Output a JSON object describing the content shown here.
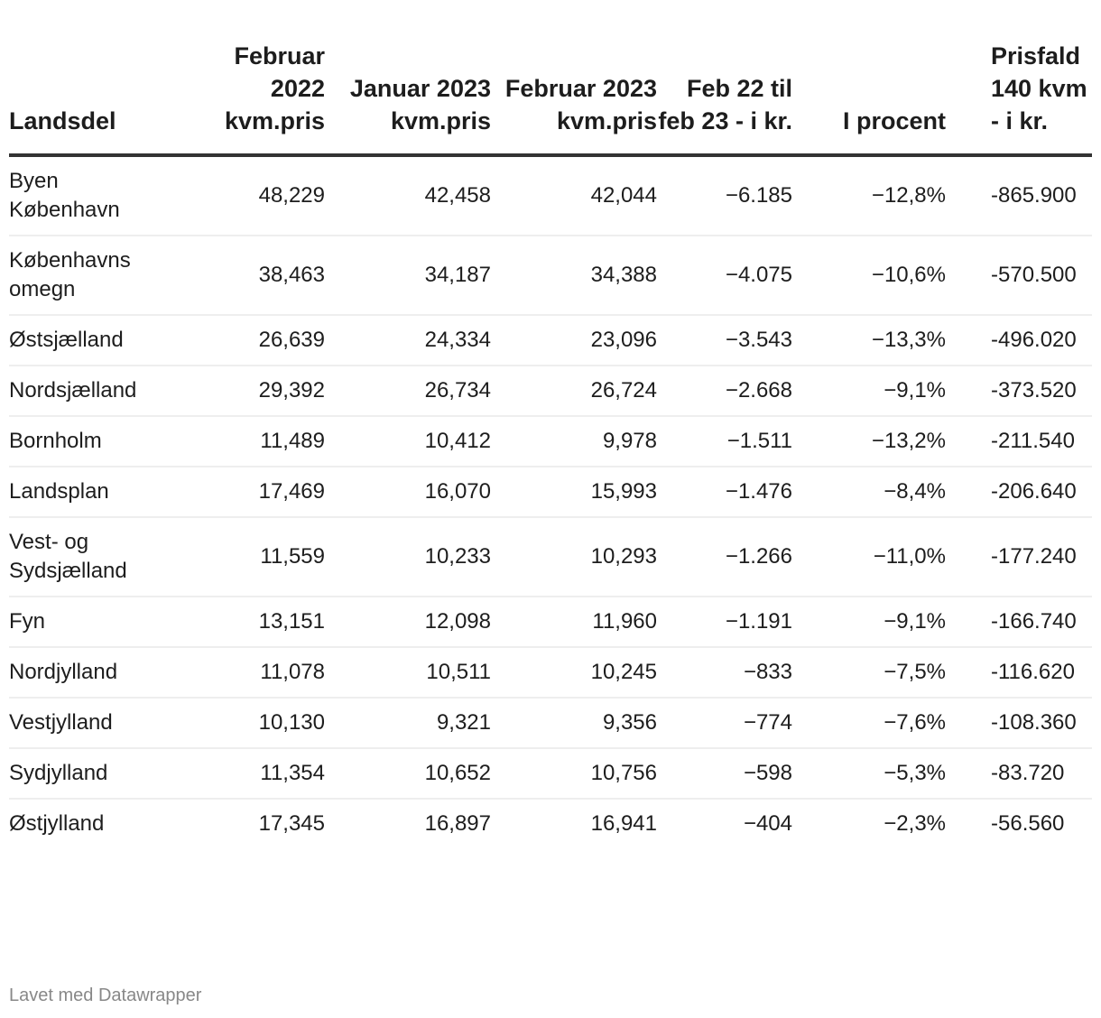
{
  "table": {
    "headers": [
      "Landsdel",
      "Februar 2022 kvm.pris",
      "Januar 2023 kvm.pris",
      "Februar 2023 kvm.pris",
      "Feb 22 til feb 23 - i kr.",
      "I procent",
      "Prisfald 140 kvm - i kr."
    ],
    "rows": [
      [
        "Byen København",
        "48,229",
        "42,458",
        "42,044",
        "−6.185",
        "−12,8%",
        "-865.900"
      ],
      [
        "Københavns omegn",
        "38,463",
        "34,187",
        "34,388",
        "−4.075",
        "−10,6%",
        "-570.500"
      ],
      [
        "Østsjælland",
        "26,639",
        "24,334",
        "23,096",
        "−3.543",
        "−13,3%",
        "-496.020"
      ],
      [
        "Nordsjælland",
        "29,392",
        "26,734",
        "26,724",
        "−2.668",
        "−9,1%",
        "-373.520"
      ],
      [
        "Bornholm",
        "11,489",
        "10,412",
        "9,978",
        "−1.511",
        "−13,2%",
        "-211.540"
      ],
      [
        "Landsplan",
        "17,469",
        "16,070",
        "15,993",
        "−1.476",
        "−8,4%",
        "-206.640"
      ],
      [
        "Vest- og Sydsjælland",
        "11,559",
        "10,233",
        "10,293",
        "−1.266",
        "−11,0%",
        "-177.240"
      ],
      [
        "Fyn",
        "13,151",
        "12,098",
        "11,960",
        "−1.191",
        "−9,1%",
        "-166.740"
      ],
      [
        "Nordjylland",
        "11,078",
        "10,511",
        "10,245",
        "−833",
        "−7,5%",
        "-116.620"
      ],
      [
        "Vestjylland",
        "10,130",
        "9,321",
        "9,356",
        "−774",
        "−7,6%",
        "-108.360"
      ],
      [
        "Sydjylland",
        "11,354",
        "10,652",
        "10,756",
        "−598",
        "−5,3%",
        "-83.720"
      ],
      [
        "Østjylland",
        "17,345",
        "16,897",
        "16,941",
        "−404",
        "−2,3%",
        "-56.560"
      ]
    ]
  },
  "footer": {
    "credit": "Lavet med Datawrapper"
  }
}
